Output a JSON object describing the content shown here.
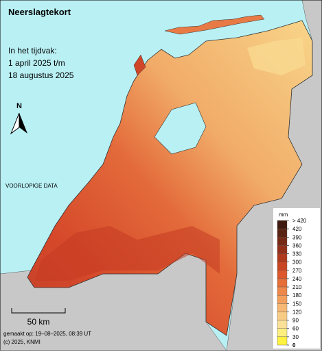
{
  "title": "Neerslagtekort",
  "period": {
    "heading": "In het tijdvak:",
    "start": "1 april 2025 t/m",
    "end": "18 augustus 2025"
  },
  "north": "N",
  "notice": "VOORLOPIGE DATA",
  "scale_bar": "50 km",
  "footer": {
    "made": "gemaakt op: 19–08–2025, 08:39 UT",
    "copyright": "(c) 2025, KNMI"
  },
  "legend": {
    "unit": "mm",
    "labels": [
      "> 420",
      420,
      390,
      360,
      330,
      300,
      270,
      240,
      210,
      180,
      150,
      120,
      90,
      60,
      30,
      0
    ],
    "colors": [
      "#3e1a10",
      "#5a2414",
      "#762a16",
      "#93301a",
      "#b03a1e",
      "#c94624",
      "#dc582c",
      "#e66e38",
      "#ee874a",
      "#f3a05e",
      "#f6b874",
      "#f9cc86",
      "#fbe098",
      "#fdee80",
      "#fff240"
    ]
  }
}
